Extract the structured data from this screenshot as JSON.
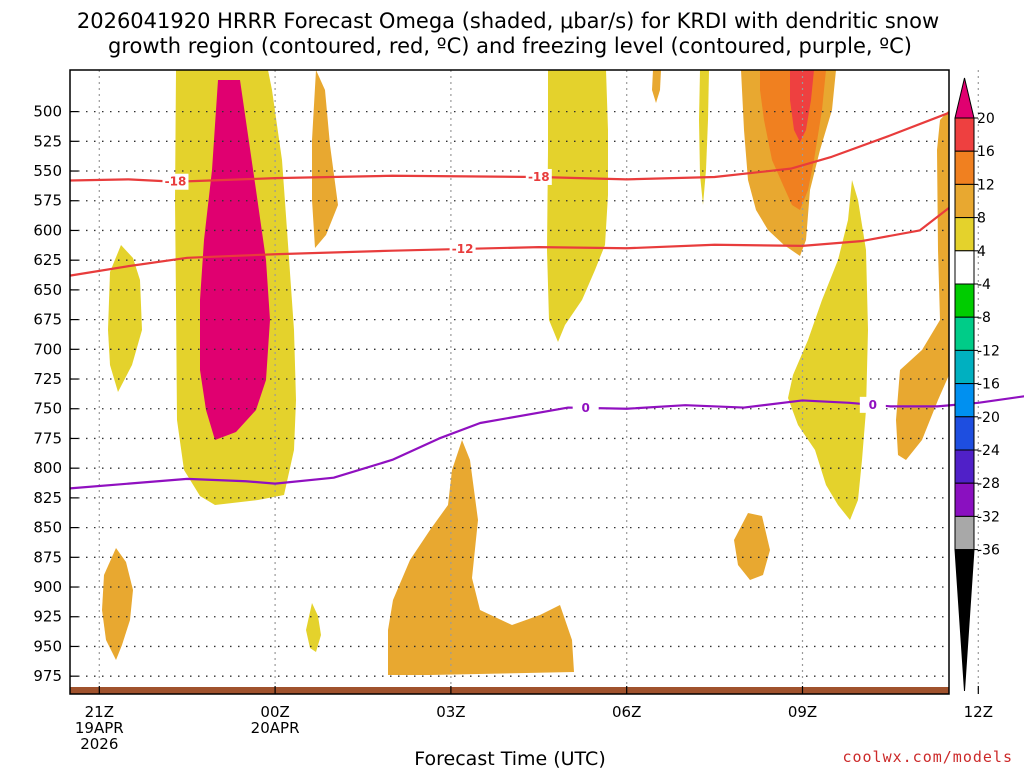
{
  "title": {
    "line1": "2026041920 HRRR Forecast Omega (shaded, μbar/s) for KRDI with dendritic snow",
    "line2": "growth region (contoured, red, ºC) and freezing level (contoured, purple, ºC)"
  },
  "credit": "coolwx.com/models",
  "chart_data": {
    "type": "time-height cross section",
    "xlabel": "Forecast Time (UTC)",
    "ylabel": "Pressure (mb)",
    "x_range_hours": [
      -0.5,
      14.5
    ],
    "y_range_mb": [
      465,
      990
    ],
    "y_ticks": [
      500,
      525,
      550,
      575,
      600,
      625,
      650,
      675,
      700,
      725,
      750,
      775,
      800,
      825,
      850,
      875,
      900,
      925,
      950,
      975
    ],
    "x_ticks": [
      {
        "hour": 0,
        "lines": [
          "21Z",
          "19APR",
          "2026"
        ]
      },
      {
        "hour": 3,
        "lines": [
          "00Z",
          "20APR"
        ]
      },
      {
        "hour": 6,
        "lines": [
          "03Z"
        ]
      },
      {
        "hour": 9,
        "lines": [
          "06Z"
        ]
      },
      {
        "hour": 12,
        "lines": [
          "09Z"
        ]
      },
      {
        "hour": 15,
        "lines": [
          "12Z"
        ]
      }
    ],
    "colorbar": {
      "labels": [
        "20",
        "16",
        "12",
        "8",
        "4",
        "-4",
        "-8",
        "-12",
        "-16",
        "-20",
        "-24",
        "-28",
        "-32",
        "-36"
      ],
      "colors": [
        "#e00070",
        "#ee4040",
        "#f08020",
        "#e8a830",
        "#e4d22c",
        "#ffffff",
        "#00cc00",
        "#00cc88",
        "#00b0c0",
        "#0090f0",
        "#1e4ee0",
        "#5020c8",
        "#8a10c0",
        "#a8a8a8",
        "#000000"
      ]
    },
    "contours": [
      {
        "name": "-18 °C",
        "label": "-18",
        "color": "#e83c3c",
        "points": [
          [
            -0.5,
            558
          ],
          [
            0.5,
            557
          ],
          [
            1.3,
            559
          ],
          [
            3,
            556
          ],
          [
            5,
            554
          ],
          [
            7.5,
            555
          ],
          [
            9,
            557
          ],
          [
            10.5,
            555
          ],
          [
            11.8,
            548
          ],
          [
            12.5,
            538
          ],
          [
            13.5,
            520
          ],
          [
            14.5,
            501
          ]
        ]
      },
      {
        "name": "-12 °C",
        "label": "-12",
        "color": "#e83c3c",
        "points": [
          [
            -0.5,
            638
          ],
          [
            0.5,
            630
          ],
          [
            1.5,
            623
          ],
          [
            3,
            620
          ],
          [
            5,
            617
          ],
          [
            7.5,
            614
          ],
          [
            9,
            615
          ],
          [
            10.5,
            612
          ],
          [
            12,
            613
          ],
          [
            13,
            609
          ],
          [
            14,
            600
          ],
          [
            14.5,
            581
          ]
        ]
      },
      {
        "name": "0 °C",
        "label": "0",
        "color": "#9010c0",
        "points": [
          [
            -0.5,
            817
          ],
          [
            0.5,
            813
          ],
          [
            1.5,
            809
          ],
          [
            2.5,
            811
          ],
          [
            3,
            813
          ],
          [
            4,
            808
          ],
          [
            5,
            793
          ],
          [
            5.8,
            775
          ],
          [
            6.5,
            762
          ],
          [
            8,
            749
          ],
          [
            9,
            750
          ],
          [
            10,
            747
          ],
          [
            11,
            749
          ],
          [
            12,
            743
          ],
          [
            12.8,
            745
          ],
          [
            13.5,
            748
          ],
          [
            14.3,
            748
          ],
          [
            15,
            745
          ],
          [
            16,
            738
          ],
          [
            16.5,
            733
          ]
        ]
      }
    ],
    "shaded_regions": [
      {
        "value_range": [
          4,
          8
        ],
        "color": "#e4d22c",
        "count": 11
      },
      {
        "value_range": [
          8,
          12
        ],
        "color": "#e8a830",
        "count": 1
      },
      {
        "value_range": [
          12,
          16
        ],
        "color": "#f08020",
        "count": 1
      },
      {
        "value_range": [
          -8,
          -4
        ],
        "color": "#00cc00",
        "count": 7
      },
      {
        "value_range": [
          -12,
          -8
        ],
        "color": "#00cc88",
        "count": 1
      }
    ],
    "surface_color": "#a0522d"
  }
}
